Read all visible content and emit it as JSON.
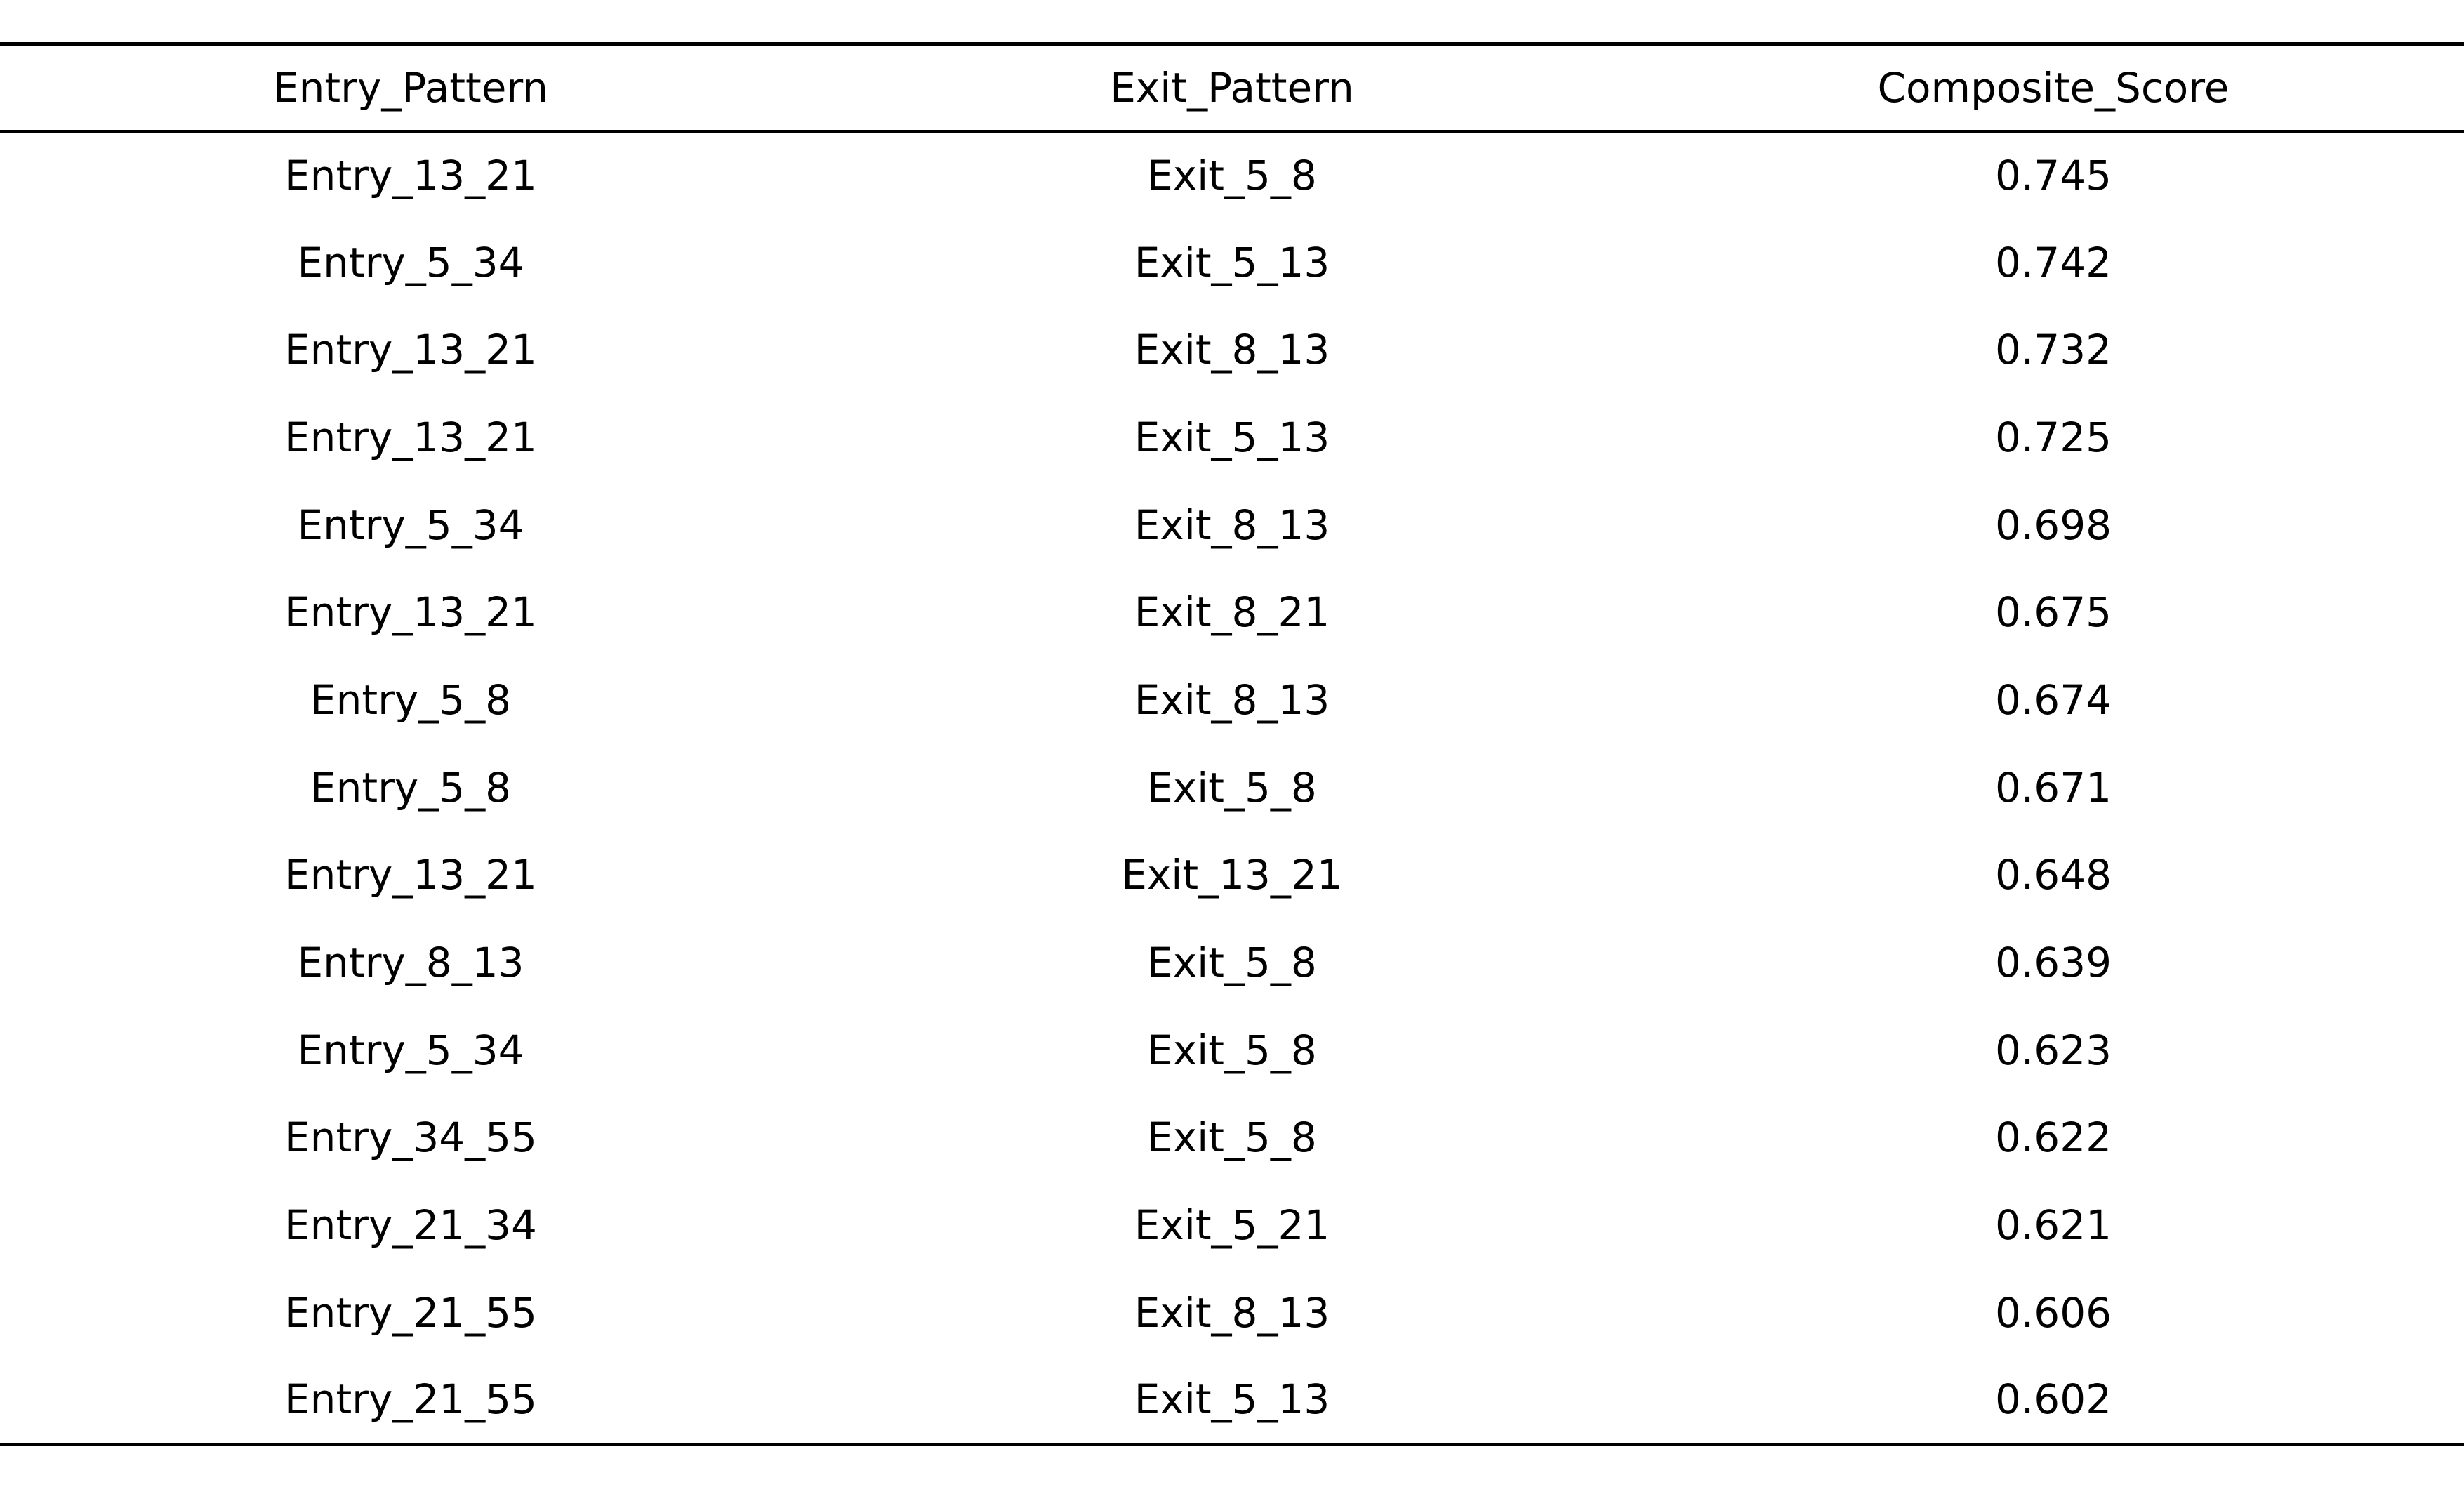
{
  "table": {
    "columns": [
      "Entry_Pattern",
      "Exit_Pattern",
      "Composite_Score"
    ],
    "rows": [
      [
        "Entry_13_21",
        "Exit_5_8",
        "0.745"
      ],
      [
        "Entry_5_34",
        "Exit_5_13",
        "0.742"
      ],
      [
        "Entry_13_21",
        "Exit_8_13",
        "0.732"
      ],
      [
        "Entry_13_21",
        "Exit_5_13",
        "0.725"
      ],
      [
        "Entry_5_34",
        "Exit_8_13",
        "0.698"
      ],
      [
        "Entry_13_21",
        "Exit_8_21",
        "0.675"
      ],
      [
        "Entry_5_8",
        "Exit_8_13",
        "0.674"
      ],
      [
        "Entry_5_8",
        "Exit_5_8",
        "0.671"
      ],
      [
        "Entry_13_21",
        "Exit_13_21",
        "0.648"
      ],
      [
        "Entry_8_13",
        "Exit_5_8",
        "0.639"
      ],
      [
        "Entry_5_34",
        "Exit_5_8",
        "0.623"
      ],
      [
        "Entry_34_55",
        "Exit_5_8",
        "0.622"
      ],
      [
        "Entry_21_34",
        "Exit_5_21",
        "0.621"
      ],
      [
        "Entry_21_55",
        "Exit_8_13",
        "0.606"
      ],
      [
        "Entry_21_55",
        "Exit_5_13",
        "0.602"
      ]
    ]
  }
}
